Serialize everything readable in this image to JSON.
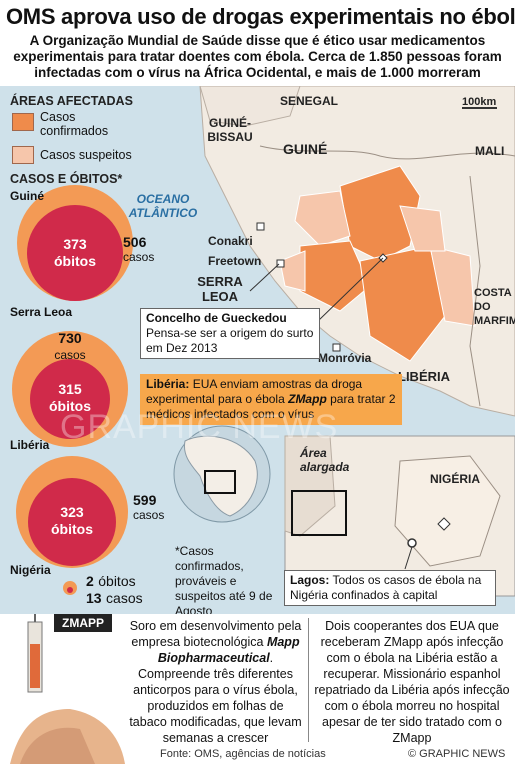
{
  "header": {
    "title": "OMS aprova uso de drogas experimentais no ébola",
    "subtitle": "A Organização Mundial de Saúde disse que é ético usar medicamentos experimentais para tratar doentes com ébola. Cerca de 1.850 pessoas foram infectadas com o vírus na África Ocidental, e mais de 1.000 morreram"
  },
  "legend": {
    "heading": "ÁREAS AFECTADAS",
    "items": [
      {
        "label": "Casos confirmados",
        "color": "#ef8b4b"
      },
      {
        "label": "Casos suspeitos",
        "color": "#f6c6ab"
      }
    ]
  },
  "cases_heading": "CASOS E ÓBITOS*",
  "countries": [
    {
      "name": "Guiné",
      "deaths": "373",
      "deaths_label": "óbitos",
      "cases": "506",
      "cases_label": "casos"
    },
    {
      "name": "Serra Leoa",
      "deaths": "315",
      "deaths_label": "óbitos",
      "cases": "730",
      "cases_label": "casos"
    },
    {
      "name": "Libéria",
      "deaths": "323",
      "deaths_label": "óbitos",
      "cases": "599",
      "cases_label": "casos"
    },
    {
      "name": "Nigéria",
      "deaths": "2",
      "deaths_label": "óbitos",
      "cases": "13",
      "cases_label": "casos"
    }
  ],
  "footnote": "*Casos confirmados, prováveis e suspeitos até 9 de Agosto",
  "map": {
    "scale": "100km",
    "labels": {
      "senegal": "SENEGAL",
      "guinea_bissau": "GUINÉ-BISSAU",
      "guinea": "GUINÉ",
      "mali": "MALI",
      "ocean": "OCEANO ATLÂNTICO",
      "conakry": "Conakri",
      "freetown": "Freetown",
      "sierra_leone": "SERRA LEOA",
      "ivory_coast": "COSTA DO MARFIM",
      "monrovia": "Monróvia",
      "liberia": "LIBÉRIA",
      "enlarged": "Área alargada",
      "nigeria": "NIGÉRIA"
    },
    "gueckedou": {
      "title": "Concelho de Gueckedou",
      "text": "Pensa-se ser a origem do surto em Dez 2013"
    },
    "liberia_note": {
      "lead": "Libéria:",
      "text1": "EUA enviam amostras da droga experimental para o ébola",
      "drug": "ZMapp",
      "text2": "para tratar 2 médicos infectados com o vírus"
    },
    "lagos_note": {
      "lead": "Lagos:",
      "text": "Todos os casos de ébola na Nigéria confinados à capital"
    }
  },
  "zmapp": {
    "tag": "ZMAPP",
    "col1_a": "Soro em desenvolvimento pela empresa biotecnológica",
    "col1_company": "Mapp Biopharmaceutical",
    "col1_b": ". Compreende três diferentes anticorpos para o vírus ébola, produzidos em folhas de tabaco modificadas, que levam semanas a crescer",
    "col2": "Dois cooperantes dos EUA que receberam ZMapp após infecção com o ébola na Libéria estão a recuperar. Missionário espanhol repatriado da Libéria após infecção com o ébola morreu no hospital apesar de ter sido tratado com o ZMapp"
  },
  "footer": {
    "source": "Fonte: OMS, agências de notícias",
    "credit": "© GRAPHIC NEWS"
  },
  "watermark": "GRAPHIC NEWS",
  "colors": {
    "confirmed": "#ef8b4b",
    "suspected": "#f6c6ab",
    "deaths_bubble": "#d02a4a",
    "cases_bubble": "#f39a55",
    "water": "#cfe1ea",
    "land": "#f2ebe2",
    "highlight": "#f7a74b"
  }
}
